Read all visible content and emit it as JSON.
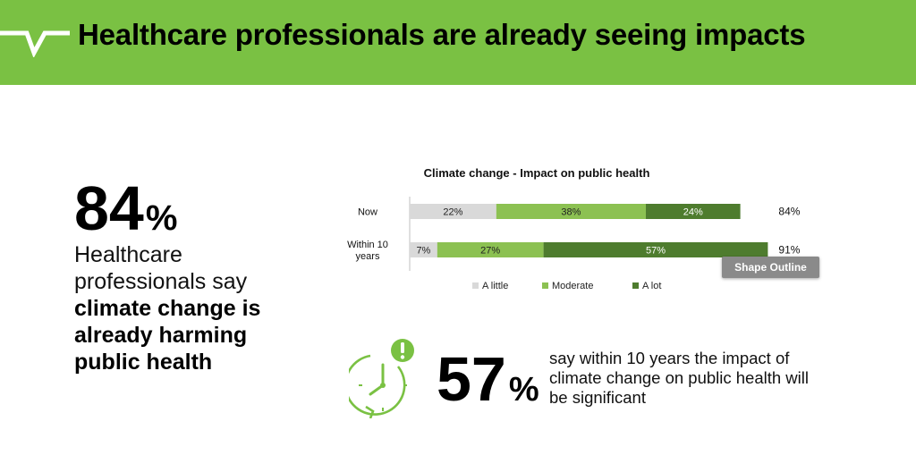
{
  "header": {
    "title": "Healthcare professionals are already seeing impacts",
    "color": "#7ac143"
  },
  "left_stat": {
    "number": "84",
    "percent_sign": "%",
    "text_plain": "Healthcare professionals say",
    "text_bold": "climate change is already harming public health"
  },
  "chart_data": {
    "type": "bar",
    "orientation": "horizontal",
    "stacked": true,
    "title": "Climate change - Impact on public health",
    "categories": [
      "Now",
      "Within 10 years"
    ],
    "series": [
      {
        "name": "A little",
        "color": "#d9d9d9",
        "values": [
          22,
          7
        ]
      },
      {
        "name": "Moderate",
        "color": "#8cc152",
        "values": [
          38,
          27
        ]
      },
      {
        "name": "A lot",
        "color": "#4e7c2e",
        "values": [
          24,
          57
        ]
      }
    ],
    "data_labels": [
      [
        "22%",
        "38%",
        "24%"
      ],
      [
        "7%",
        "27%",
        "57%"
      ]
    ],
    "totals": [
      "84%",
      "91%"
    ],
    "xlim": [
      0,
      100
    ],
    "legend_position": "bottom",
    "grid": false
  },
  "tooltip": {
    "text": "Shape Outline"
  },
  "bottom_stat": {
    "number": "57",
    "percent_sign": "%",
    "text": "say within 10 years the impact of climate change on public health will be significant",
    "icon": "clock-alert-icon",
    "icon_color": "#7ac143"
  }
}
